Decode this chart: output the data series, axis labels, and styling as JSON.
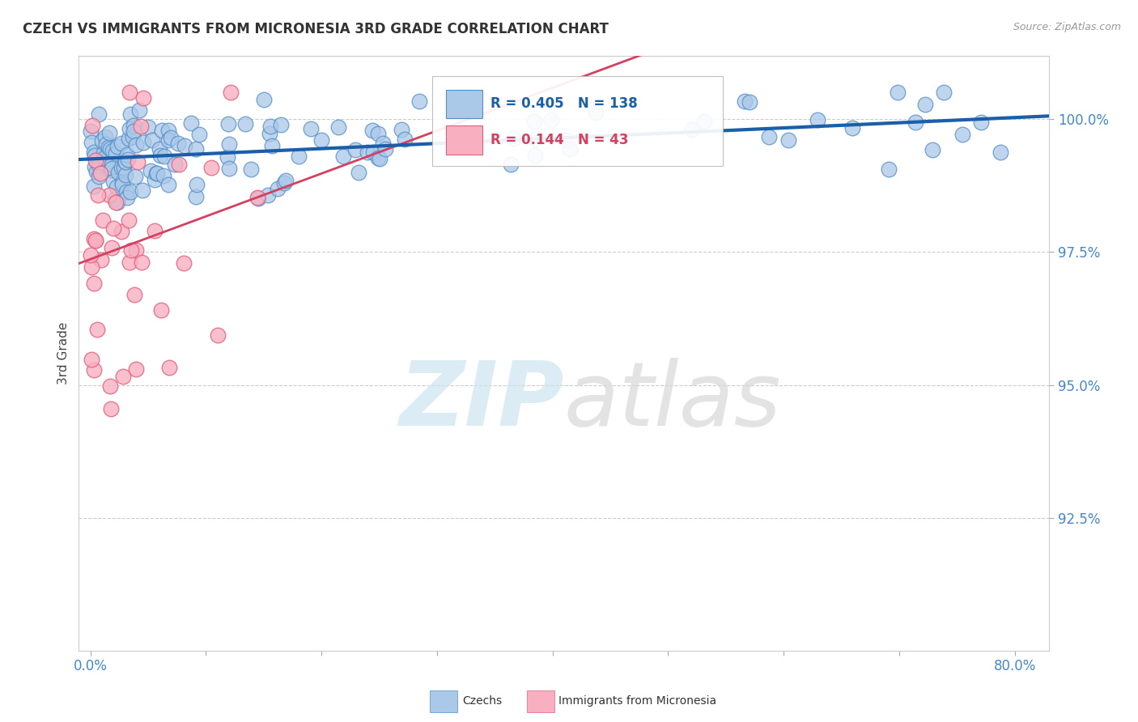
{
  "title": "CZECH VS IMMIGRANTS FROM MICRONESIA 3RD GRADE CORRELATION CHART",
  "source": "Source: ZipAtlas.com",
  "ylabel": "3rd Grade",
  "y_values": [
    92.5,
    95.0,
    97.5,
    100.0
  ],
  "y_min": 90.0,
  "y_max": 101.2,
  "x_min": -1.0,
  "x_max": 83.0,
  "blue_R": 0.405,
  "blue_N": 138,
  "pink_R": 0.144,
  "pink_N": 43,
  "blue_color": "#aac8e8",
  "blue_edge": "#5590c8",
  "pink_color": "#f8b0c0",
  "pink_edge": "#e06080",
  "blue_line_color": "#1a5fa8",
  "pink_line_color": "#d44060",
  "watermark_color": "#cce4f0",
  "background_color": "#ffffff",
  "grid_color": "#cccccc"
}
